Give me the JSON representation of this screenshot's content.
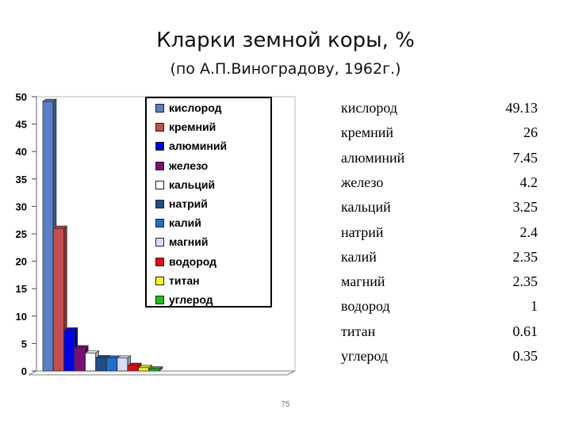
{
  "header": {
    "title": "Кларки земной коры, %",
    "subtitle": "(по А.П.Виноградову, 1962г.)"
  },
  "chart_data": {
    "type": "bar",
    "title": "Кларки земной коры, %",
    "subtitle": "(по А.П.Виноградову, 1962г.)",
    "xlabel": "",
    "ylabel": "",
    "ylim": [
      0,
      50
    ],
    "yticks": [
      0,
      5,
      10,
      15,
      20,
      25,
      30,
      35,
      40,
      45,
      50
    ],
    "legend_position": "top-left",
    "series": [
      {
        "name": "кислород",
        "value": 49.13,
        "color": "#5b7fc7"
      },
      {
        "name": "кремний",
        "value": 26,
        "color": "#c0504d"
      },
      {
        "name": "алюминий",
        "value": 7.45,
        "color": "#0000e6"
      },
      {
        "name": "железо",
        "value": 4.2,
        "color": "#7a0f7a"
      },
      {
        "name": "кальций",
        "value": 3.25,
        "color": "#ffffff"
      },
      {
        "name": "натрий",
        "value": 2.4,
        "color": "#1f4e8c"
      },
      {
        "name": "калий",
        "value": 2.35,
        "color": "#1f6fd0"
      },
      {
        "name": "магний",
        "value": 2.35,
        "color": "#d9dcf5"
      },
      {
        "name": "водород",
        "value": 1,
        "color": "#e01010"
      },
      {
        "name": "титан",
        "value": 0.61,
        "color": "#f5f52a"
      },
      {
        "name": "углерод",
        "value": 0.35,
        "color": "#1fbf1f"
      }
    ]
  },
  "table": {
    "rows": [
      {
        "name": "кислород",
        "value": "49.13"
      },
      {
        "name": "кремний",
        "value": "26"
      },
      {
        "name": "алюминий",
        "value": "7.45"
      },
      {
        "name": "железо",
        "value": "4.2"
      },
      {
        "name": "кальций",
        "value": "3.25"
      },
      {
        "name": "натрий",
        "value": "2.4"
      },
      {
        "name": "калий",
        "value": "2.35"
      },
      {
        "name": "магний",
        "value": "2.35"
      },
      {
        "name": "водород",
        "value": "1"
      },
      {
        "name": "титан",
        "value": "0.61"
      },
      {
        "name": "углерод",
        "value": "0.35"
      }
    ]
  },
  "footer": {
    "page_number": "75"
  }
}
